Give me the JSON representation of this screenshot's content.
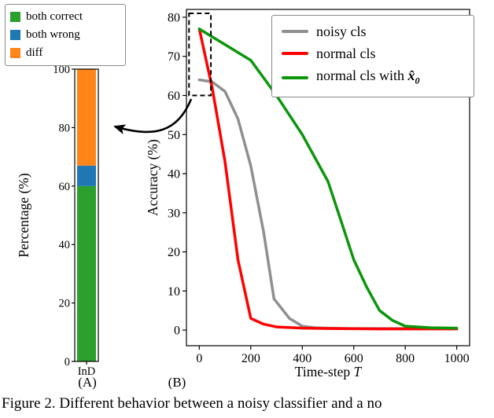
{
  "caption": "Figure 2. Different behavior between a noisy classifier and a no",
  "chart_data": [
    {
      "type": "bar",
      "stacked": true,
      "panel": "(A)",
      "categories": [
        "InD"
      ],
      "series": [
        {
          "name": "both correct",
          "values": [
            60
          ],
          "color": "#2ca02c"
        },
        {
          "name": "both wrong",
          "values": [
            7
          ],
          "color": "#1f77b4"
        },
        {
          "name": "diff",
          "values": [
            33
          ],
          "color": "#ff8519"
        }
      ],
      "ylabel": "Percentage (%)",
      "ylim": [
        0,
        100
      ],
      "yticks": [
        0,
        20,
        40,
        60,
        80,
        100
      ],
      "legend_position": "upper left outside"
    },
    {
      "type": "line",
      "panel": "(B)",
      "xlabel": "Time-step",
      "xlabel_math": "T",
      "ylabel": "Accuracy (%)",
      "xlim": [
        -50,
        1050
      ],
      "ylim": [
        -4,
        82
      ],
      "xticks": [
        0,
        200,
        400,
        600,
        800,
        1000
      ],
      "yticks": [
        0,
        10,
        20,
        30,
        40,
        50,
        60,
        70,
        80
      ],
      "legend_position": "upper right",
      "series": [
        {
          "label": "noisy cls",
          "color": "#8f8f8f",
          "points": [
            [
              0,
              64
            ],
            [
              50,
              63.5
            ],
            [
              100,
              61
            ],
            [
              150,
              54
            ],
            [
              200,
              42
            ],
            [
              250,
              25
            ],
            [
              290,
              8
            ],
            [
              350,
              3
            ],
            [
              400,
              1
            ],
            [
              450,
              0.6
            ],
            [
              500,
              0.5
            ],
            [
              600,
              0.4
            ],
            [
              700,
              0.4
            ],
            [
              800,
              0.4
            ],
            [
              900,
              0.4
            ],
            [
              1000,
              0.4
            ]
          ]
        },
        {
          "label": "normal cls",
          "color": "#ff0000",
          "points": [
            [
              0,
              77
            ],
            [
              50,
              62
            ],
            [
              100,
              43
            ],
            [
              150,
              18
            ],
            [
              200,
              3
            ],
            [
              250,
              1.5
            ],
            [
              300,
              0.8
            ],
            [
              400,
              0.5
            ],
            [
              500,
              0.4
            ],
            [
              600,
              0.35
            ],
            [
              700,
              0.3
            ],
            [
              800,
              0.3
            ],
            [
              900,
              0.3
            ],
            [
              1000,
              0.3
            ]
          ]
        },
        {
          "label": "normal cls with",
          "label_math": "x̂",
          "label_sub": "0",
          "color": "#0c960c",
          "points": [
            [
              0,
              77
            ],
            [
              100,
              73
            ],
            [
              200,
              69
            ],
            [
              300,
              60
            ],
            [
              400,
              50
            ],
            [
              500,
              38
            ],
            [
              550,
              28
            ],
            [
              600,
              18
            ],
            [
              650,
              11
            ],
            [
              700,
              5
            ],
            [
              750,
              2.5
            ],
            [
              800,
              1
            ],
            [
              900,
              0.6
            ],
            [
              1000,
              0.5
            ]
          ]
        }
      ],
      "annotation_box": {
        "x0": -40,
        "x1": 45,
        "y0": 60,
        "y1": 81
      }
    }
  ]
}
